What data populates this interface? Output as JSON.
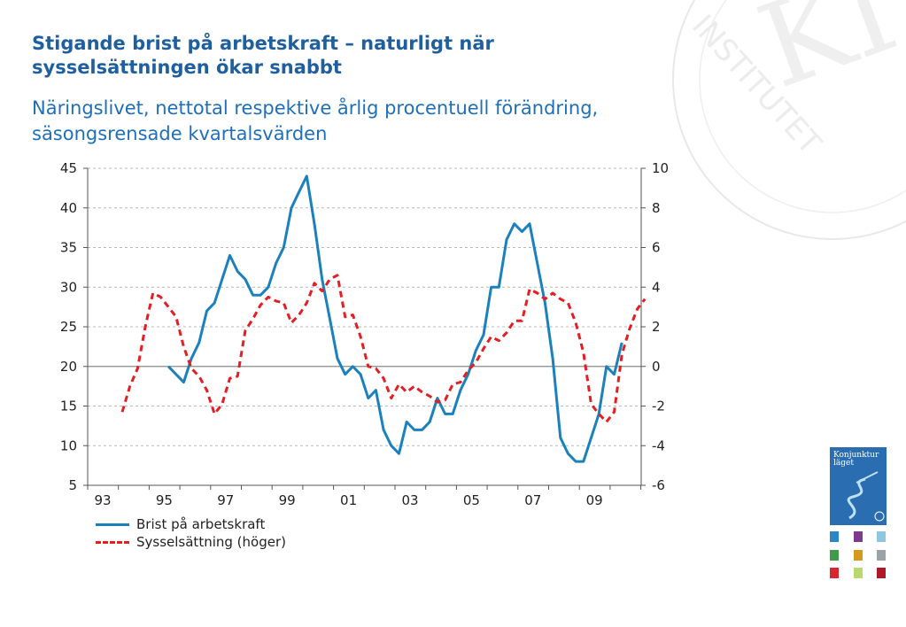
{
  "title": "Stigande brist på arbetskraft – naturligt när sysselsättningen ökar snabbt",
  "subtitle": "Näringslivet, nettotal respektive årlig procentuell förändring, säsongsrensade kvartalsvärden",
  "brand": {
    "text_line1": "Konjunktur",
    "text_line2": "läget",
    "watermark_text": "INSTITUTET",
    "watermark_letters": "KI"
  },
  "colors": {
    "brist": "#1b81bc",
    "syssel": "#e31e24",
    "title": "#1f5f9e",
    "subtitle": "#1f6fb8",
    "brand": "#2a6db0"
  },
  "chart_data": {
    "type": "line",
    "title": "",
    "x_tick_labels": [
      "93",
      "95",
      "97",
      "99",
      "01",
      "03",
      "05",
      "07",
      "09"
    ],
    "x_start_label": "93",
    "y_left": {
      "lim": [
        5,
        45
      ],
      "ticks": [
        5,
        10,
        15,
        20,
        25,
        30,
        35,
        40,
        45
      ]
    },
    "y_right": {
      "lim": [
        -6,
        10
      ],
      "ticks": [
        -6,
        -4,
        -2,
        0,
        2,
        4,
        6,
        8,
        10
      ]
    },
    "grid": true,
    "legend_position": "bottom-left",
    "series": [
      {
        "name": "Brist på arbetskraft",
        "axis": "left",
        "style": "solid",
        "values": [
          null,
          null,
          null,
          null,
          null,
          null,
          null,
          null,
          null,
          null,
          null,
          null,
          null,
          null,
          null,
          null,
          20,
          19,
          18,
          21,
          23,
          27,
          28,
          31,
          34,
          32,
          31,
          29,
          29,
          30,
          33,
          35,
          40,
          42,
          44,
          38,
          31,
          26,
          21,
          19,
          20,
          19,
          16,
          17,
          12,
          10,
          9,
          13,
          12,
          12,
          13,
          16,
          14,
          14,
          17,
          19,
          22,
          24,
          30,
          30,
          36,
          38,
          37,
          38,
          33,
          28,
          21,
          11,
          9,
          8,
          8,
          11,
          14,
          20,
          19,
          23
        ]
      },
      {
        "name": "Sysselsättning (höger)",
        "axis": "right",
        "style": "dashed",
        "values": [
          null,
          null,
          null,
          null,
          null,
          null,
          null,
          null,
          null,
          null,
          -2.3,
          -1.0,
          -0.1,
          2.0,
          3.7,
          3.5,
          3.0,
          2.5,
          1.0,
          -0.1,
          -0.5,
          -1.2,
          -2.4,
          -1.9,
          -0.6,
          -0.5,
          1.8,
          2.4,
          3.1,
          3.5,
          3.3,
          3.2,
          2.2,
          2.6,
          3.2,
          4.2,
          3.8,
          4.4,
          4.6,
          2.5,
          2.6,
          1.5,
          0.0,
          -0.1,
          -0.6,
          -1.6,
          -0.9,
          -1.3,
          -1.0,
          -1.3,
          -1.5,
          -1.8,
          -1.7,
          -0.9,
          -0.8,
          -0.2,
          0.2,
          0.9,
          1.5,
          1.3,
          1.7,
          2.3,
          2.3,
          3.9,
          3.7,
          3.4,
          3.7,
          3.4,
          3.2,
          2.2,
          0.7,
          -1.9,
          -2.4,
          -2.8,
          -2.3,
          0.6,
          1.9,
          2.9,
          3.4
        ]
      }
    ]
  }
}
